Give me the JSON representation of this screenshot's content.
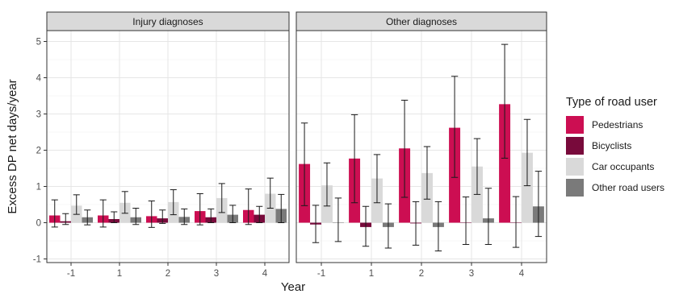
{
  "chart_data": {
    "type": "bar",
    "ylabel": "Excess DP net days/year",
    "xlabel": "Year",
    "ylim": [
      -1.1,
      5.3
    ],
    "y_ticks": [
      -1,
      0,
      1,
      2,
      3,
      4,
      5
    ],
    "categories": [
      "-1",
      "1",
      "2",
      "3",
      "4"
    ],
    "legend": {
      "title": "Type of road user",
      "placement": "right",
      "items": [
        {
          "name": "Pedestrians",
          "color": "#cc0e52"
        },
        {
          "name": "Bicyclists",
          "color": "#780a3b"
        },
        {
          "name": "Car occupants",
          "color": "#d9d9d9"
        },
        {
          "name": "Other road users",
          "color": "#7a7a7a"
        }
      ]
    },
    "grid": true,
    "facets": [
      {
        "title": "Injury diagnoses",
        "series": [
          {
            "name": "Pedestrians",
            "values": [
              0.2,
              0.2,
              0.18,
              0.32,
              0.35
            ],
            "ci_low": [
              -0.12,
              -0.12,
              -0.13,
              -0.06,
              -0.05
            ],
            "ci_high": [
              0.63,
              0.63,
              0.6,
              0.8,
              0.93
            ]
          },
          {
            "name": "Bicyclists",
            "values": [
              0.04,
              0.1,
              0.12,
              0.15,
              0.22
            ],
            "ci_low": [
              -0.05,
              0.0,
              -0.02,
              0.0,
              0.0
            ],
            "ci_high": [
              0.25,
              0.3,
              0.35,
              0.38,
              0.45
            ]
          },
          {
            "name": "Car occupants",
            "values": [
              0.47,
              0.55,
              0.57,
              0.68,
              0.8
            ],
            "ci_low": [
              0.23,
              0.26,
              0.22,
              0.28,
              0.4
            ],
            "ci_high": [
              0.77,
              0.86,
              0.91,
              1.08,
              1.23
            ]
          },
          {
            "name": "Other road users",
            "values": [
              0.15,
              0.15,
              0.16,
              0.22,
              0.38
            ],
            "ci_low": [
              -0.06,
              -0.05,
              -0.05,
              0.0,
              0.0
            ],
            "ci_high": [
              0.35,
              0.4,
              0.38,
              0.48,
              0.78
            ]
          }
        ]
      },
      {
        "title": "Other diagnoses",
        "series": [
          {
            "name": "Pedestrians",
            "values": [
              1.62,
              1.77,
              2.05,
              2.62,
              3.27
            ],
            "ci_low": [
              0.47,
              0.55,
              0.7,
              1.25,
              1.78
            ],
            "ci_high": [
              2.75,
              2.98,
              3.38,
              4.04,
              4.92
            ]
          },
          {
            "name": "Bicyclists",
            "values": [
              -0.05,
              -0.12,
              -0.02,
              0.0,
              0.0
            ],
            "ci_low": [
              -0.55,
              -0.65,
              -0.62,
              -0.6,
              -0.68
            ],
            "ci_high": [
              0.48,
              0.45,
              0.58,
              0.71,
              0.72
            ]
          },
          {
            "name": "Car occupants",
            "values": [
              1.03,
              1.22,
              1.37,
              1.55,
              1.93
            ],
            "ci_low": [
              0.46,
              0.55,
              0.65,
              0.78,
              1.02
            ],
            "ci_high": [
              1.65,
              1.88,
              2.1,
              2.32,
              2.85
            ]
          },
          {
            "name": "Other road users",
            "values": [
              0.0,
              -0.12,
              -0.12,
              0.12,
              0.45
            ],
            "ci_low": [
              -0.52,
              -0.7,
              -0.78,
              -0.6,
              -0.38
            ],
            "ci_high": [
              0.68,
              0.52,
              0.58,
              0.95,
              1.42
            ]
          }
        ]
      }
    ]
  }
}
